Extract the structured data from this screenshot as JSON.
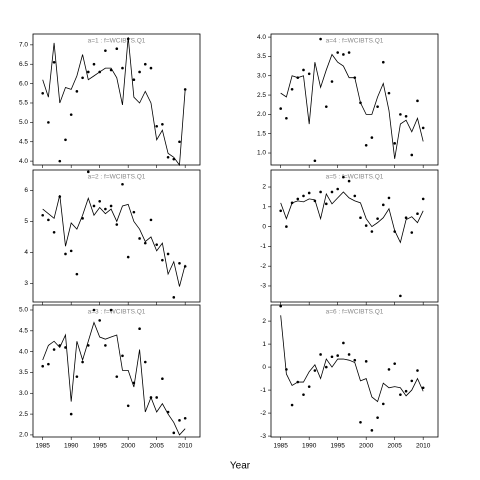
{
  "xlabel": "Year",
  "chart_data": [
    {
      "type": "line",
      "title": "a=1 : f=WCIBTS.Q1",
      "x": [
        1985,
        1986,
        1987,
        1988,
        1989,
        1990,
        1991,
        1992,
        1993,
        1994,
        1995,
        1996,
        1997,
        1998,
        1999,
        2000,
        2001,
        2002,
        2003,
        2004,
        2005,
        2006,
        2007,
        2008,
        2009,
        2010
      ],
      "series": [
        {
          "style": "line",
          "color": "#000000",
          "values": [
            6.1,
            5.65,
            7.05,
            5.5,
            5.9,
            5.85,
            6.2,
            6.75,
            6.1,
            6.2,
            6.3,
            6.4,
            6.4,
            6.15,
            5.45,
            7.2,
            5.65,
            5.5,
            5.8,
            5.5,
            4.55,
            4.8,
            4.2,
            4.1,
            3.9,
            5.85
          ]
        },
        {
          "style": "points",
          "color": "#000000",
          "values": [
            5.75,
            5.0,
            6.55,
            4.0,
            4.55,
            5.2,
            5.8,
            6.15,
            6.3,
            6.5,
            6.3,
            6.85,
            6.35,
            6.9,
            6.4,
            7.15,
            6.1,
            6.3,
            6.5,
            6.4,
            4.9,
            4.95,
            4.1,
            4.05,
            4.5,
            5.85
          ]
        }
      ],
      "xlim": [
        1983.3,
        2012.6
      ],
      "xticks": [
        1985,
        1990,
        1995,
        2000,
        2005,
        2010
      ],
      "ylim": [
        3.9,
        7.28
      ],
      "yticks": [
        {
          "value": 4,
          "label": "4.0"
        },
        4.5,
        {
          "value": 5,
          "label": "5.0"
        },
        5.5,
        {
          "value": 6,
          "label": "6.0"
        },
        6.5,
        {
          "value": 7,
          "label": "7.0"
        }
      ]
    },
    {
      "type": "line",
      "title": "a=4 : f=WCIBTS.Q1",
      "x": [
        1985,
        1986,
        1987,
        1988,
        1989,
        1990,
        1991,
        1992,
        1993,
        1994,
        1995,
        1996,
        1997,
        1998,
        1999,
        2000,
        2001,
        2002,
        2003,
        2004,
        2005,
        2006,
        2007,
        2008,
        2009,
        2010
      ],
      "series": [
        {
          "style": "line",
          "color": "#000000",
          "values": [
            2.55,
            2.45,
            3.0,
            2.95,
            3.0,
            1.75,
            3.35,
            2.7,
            3.15,
            3.55,
            3.35,
            3.25,
            2.95,
            2.95,
            2.3,
            2.0,
            2.0,
            2.45,
            2.8,
            2.1,
            0.85,
            1.75,
            1.85,
            1.55,
            1.9,
            1.3
          ]
        },
        {
          "style": "points",
          "color": "#000000",
          "values": [
            2.15,
            1.9,
            2.65,
            2.95,
            3.15,
            3.05,
            0.8,
            3.95,
            2.2,
            2.85,
            3.6,
            3.55,
            3.6,
            2.95,
            2.3,
            1.2,
            1.4,
            2.2,
            3.35,
            2.55,
            1.25,
            2.0,
            1.95,
            0.95,
            2.35,
            1.65
          ]
        }
      ],
      "xlim": [
        1983.3,
        2012.6
      ],
      "xticks": [
        1985,
        1990,
        1995,
        2000,
        2005,
        2010
      ],
      "ylim": [
        0.69,
        4.08
      ],
      "yticks": [
        {
          "value": 1,
          "label": "1.0"
        },
        1.5,
        {
          "value": 2,
          "label": "2.0"
        },
        2.5,
        {
          "value": 3,
          "label": "3.0"
        },
        3.5,
        {
          "value": 4,
          "label": "4.0"
        }
      ]
    },
    {
      "type": "line",
      "title": "a=2 : f=WCIBTS.Q1",
      "x": [
        1985,
        1986,
        1987,
        1988,
        1989,
        1990,
        1991,
        1992,
        1993,
        1994,
        1995,
        1996,
        1997,
        1998,
        1999,
        2000,
        2001,
        2002,
        2003,
        2004,
        2005,
        2006,
        2007,
        2008,
        2009,
        2010
      ],
      "series": [
        {
          "style": "line",
          "color": "#000000",
          "values": [
            5.4,
            5.25,
            5.1,
            5.85,
            4.2,
            4.95,
            4.75,
            5.2,
            5.75,
            5.2,
            5.45,
            5.25,
            5.4,
            5.0,
            5.5,
            5.55,
            5.0,
            4.75,
            4.35,
            4.5,
            4.05,
            4.3,
            3.3,
            3.7,
            2.9,
            3.6
          ]
        },
        {
          "style": "points",
          "color": "#000000",
          "values": [
            5.2,
            5.05,
            4.65,
            5.8,
            3.95,
            4.05,
            3.3,
            5.1,
            6.6,
            5.5,
            5.65,
            5.4,
            5.5,
            4.9,
            6.2,
            3.85,
            5.3,
            4.45,
            4.3,
            5.05,
            4.25,
            3.75,
            3.95,
            2.55,
            3.65,
            3.55
          ]
        }
      ],
      "xlim": [
        1983.3,
        2012.6
      ],
      "xticks": [
        1985,
        1990,
        1995,
        2000,
        2005,
        2010
      ],
      "ylim": [
        2.4,
        6.66
      ],
      "yticks": [
        3,
        4,
        5,
        6
      ]
    },
    {
      "type": "line",
      "title": "a=5 : f=WCIBTS.Q1",
      "x": [
        1985,
        1986,
        1987,
        1988,
        1989,
        1990,
        1991,
        1992,
        1993,
        1994,
        1995,
        1996,
        1997,
        1998,
        1999,
        2000,
        2001,
        2002,
        2003,
        2004,
        2005,
        2006,
        2007,
        2008,
        2009,
        2010
      ],
      "series": [
        {
          "style": "line",
          "color": "#000000",
          "values": [
            1.2,
            0.4,
            1.2,
            1.3,
            1.25,
            1.4,
            1.35,
            0.4,
            1.65,
            1.15,
            1.45,
            1.75,
            1.45,
            1.3,
            1.2,
            0.4,
            0.0,
            0.2,
            0.45,
            0.9,
            -0.2,
            -0.8,
            0.35,
            0.5,
            0.2,
            0.8
          ]
        },
        {
          "style": "points",
          "color": "#000000",
          "values": [
            0.8,
            0.0,
            1.2,
            1.4,
            1.55,
            1.7,
            1.3,
            1.75,
            1.15,
            1.75,
            1.9,
            2.5,
            2.3,
            1.55,
            0.45,
            0.05,
            -0.25,
            0.4,
            1.1,
            1.45,
            -0.25,
            -3.5,
            0.45,
            -0.3,
            0.65,
            1.4
          ]
        }
      ],
      "xlim": [
        1983.3,
        2012.6
      ],
      "xticks": [
        1985,
        1990,
        1995,
        2000,
        2005,
        2010
      ],
      "ylim": [
        -3.81,
        2.86
      ],
      "yticks": [
        -3,
        -2,
        -1,
        0,
        1,
        2
      ]
    },
    {
      "type": "line",
      "title": "a=3 : f=WCIBTS.Q1",
      "x": [
        1985,
        1986,
        1987,
        1988,
        1989,
        1990,
        1991,
        1992,
        1993,
        1994,
        1995,
        1996,
        1997,
        1998,
        1999,
        2000,
        2001,
        2002,
        2003,
        2004,
        2005,
        2006,
        2007,
        2008,
        2009,
        2010
      ],
      "series": [
        {
          "style": "line",
          "color": "#000000",
          "values": [
            3.8,
            4.15,
            4.25,
            4.1,
            4.4,
            2.8,
            4.25,
            3.8,
            4.25,
            4.7,
            4.35,
            4.3,
            4.35,
            4.4,
            3.55,
            3.55,
            3.15,
            4.05,
            2.55,
            2.9,
            2.55,
            2.75,
            2.5,
            2.3,
            2.0,
            2.15
          ]
        },
        {
          "style": "points",
          "color": "#000000",
          "values": [
            3.65,
            3.7,
            4.05,
            4.15,
            4.1,
            2.5,
            3.4,
            3.75,
            4.15,
            5.0,
            4.75,
            4.15,
            5.0,
            3.4,
            3.9,
            2.7,
            3.25,
            4.55,
            3.75,
            2.9,
            2.9,
            3.35,
            2.55,
            2.05,
            2.35,
            2.4
          ]
        }
      ],
      "xlim": [
        1983.3,
        2012.6
      ],
      "xticks": [
        1985,
        1990,
        1995,
        2000,
        2005,
        2010
      ],
      "ylim": [
        1.95,
        5.12
      ],
      "yticks": [
        {
          "value": 2,
          "label": "2.0"
        },
        2.5,
        {
          "value": 3,
          "label": "3.0"
        },
        3.5,
        {
          "value": 4,
          "label": "4.0"
        },
        4.5,
        {
          "value": 5,
          "label": "5.0"
        }
      ]
    },
    {
      "type": "line",
      "title": "a=6 : f=WCIBTS.Q1",
      "x": [
        1985,
        1986,
        1987,
        1988,
        1989,
        1990,
        1991,
        1992,
        1993,
        1994,
        1995,
        1996,
        1997,
        1998,
        1999,
        2000,
        2001,
        2002,
        2003,
        2004,
        2005,
        2006,
        2007,
        2008,
        2009,
        2010
      ],
      "series": [
        {
          "style": "line",
          "color": "#000000",
          "values": [
            2.25,
            -0.3,
            -0.8,
            -0.65,
            -0.65,
            -0.2,
            0.1,
            -0.5,
            0.35,
            0.0,
            0.35,
            0.35,
            0.3,
            0.2,
            -0.6,
            -0.5,
            -1.3,
            -1.5,
            -0.7,
            -0.9,
            -0.85,
            -0.9,
            -1.25,
            -1.0,
            -0.5,
            -1.05
          ]
        },
        {
          "style": "points",
          "color": "#000000",
          "values": [
            2.65,
            -0.1,
            -1.65,
            -0.65,
            -1.2,
            -0.85,
            -0.15,
            0.55,
            0.0,
            0.45,
            0.5,
            1.05,
            0.55,
            0.3,
            -2.4,
            0.25,
            -2.75,
            -2.2,
            -1.6,
            -0.1,
            0.15,
            -1.2,
            -1.05,
            -0.6,
            -0.15,
            -0.9
          ]
        }
      ],
      "xlim": [
        1983.3,
        2012.6
      ],
      "xticks": [
        1985,
        1990,
        1995,
        2000,
        2005,
        2010
      ],
      "ylim": [
        -3.04,
        2.7
      ],
      "yticks": [
        -3,
        -2,
        -1,
        0,
        1,
        2
      ]
    }
  ]
}
